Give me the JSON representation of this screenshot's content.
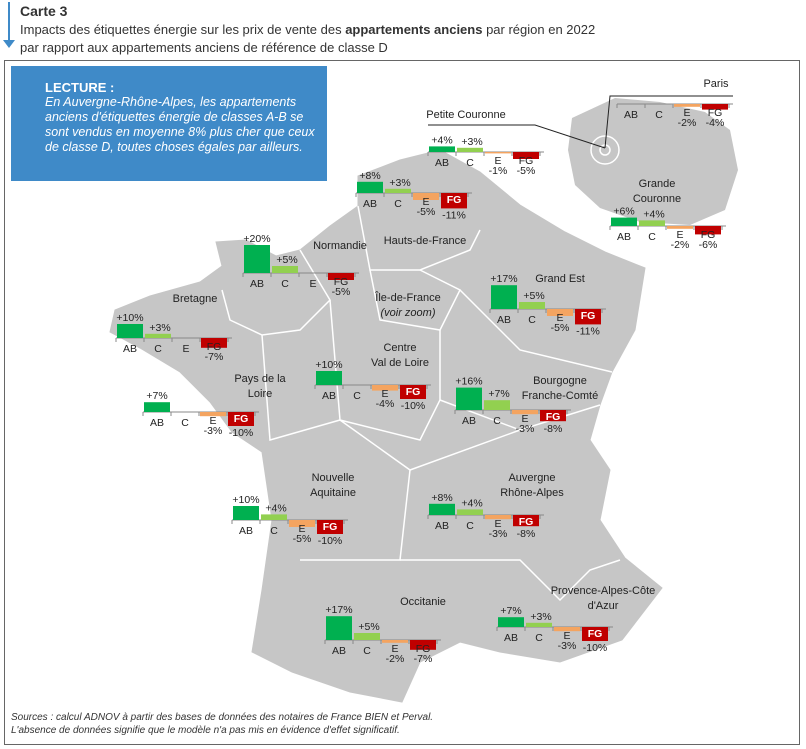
{
  "header": {
    "label": "Carte 3",
    "title_part1": "Impacts des étiquettes énergie sur les prix de vente des ",
    "title_bold": "appartements anciens",
    "title_part2": " par région en 2022",
    "title_line2": "par rapport aux appartements anciens de référence de classe D"
  },
  "lecture": {
    "heading": "LECTURE :",
    "text": "En Auvergne-Rhône-Alpes, les appartements anciens d'étiquettes énergie de classes A-B se sont vendus en moyenne 8% plus cher que ceux de classe D, toutes choses égales par ailleurs."
  },
  "footer": {
    "sources": "Sources : calcul ADNOV à partir des bases de données des notaires de France BIEN et Perval.",
    "note": "L'absence de données signifie que le modèle n'a pas mis en évidence d'effet significatif."
  },
  "chart_data": {
    "type": "bar",
    "unit": "%",
    "categories": [
      "AB",
      "C",
      "E",
      "FG"
    ],
    "colors": {
      "AB": "#00b050",
      "C": "#92d050",
      "E": "#f4a460",
      "FG": "#c00000"
    },
    "regions": [
      {
        "id": "paris",
        "name": [
          "Paris"
        ],
        "values": [
          null,
          null,
          -2,
          -4
        ]
      },
      {
        "id": "petite-couronne",
        "name": [
          "Petite Couronne"
        ],
        "values": [
          4,
          3,
          -1,
          -5
        ]
      },
      {
        "id": "grande-couronne",
        "name": [
          "Grande",
          "Couronne"
        ],
        "values": [
          6,
          4,
          -2,
          -6
        ]
      },
      {
        "id": "hauts-de-france",
        "name": [
          "Hauts-de-France"
        ],
        "values": [
          8,
          3,
          -5,
          -11
        ]
      },
      {
        "id": "normandie",
        "name": [
          "Normandie"
        ],
        "values": [
          20,
          5,
          null,
          -5
        ]
      },
      {
        "id": "bretagne",
        "name": [
          "Bretagne"
        ],
        "values": [
          10,
          3,
          null,
          -7
        ]
      },
      {
        "id": "ile-de-france",
        "name": [
          "Île-de-France"
        ],
        "note": "(voir zoom)",
        "values": []
      },
      {
        "id": "grand-est",
        "name": [
          "Grand Est"
        ],
        "values": [
          17,
          5,
          -5,
          -11
        ]
      },
      {
        "id": "centre-val-de-loire",
        "name": [
          "Centre",
          "Val de Loire"
        ],
        "values": [
          10,
          null,
          -4,
          -10
        ]
      },
      {
        "id": "pays-de-la-loire",
        "name": [
          "Pays de la",
          "Loire"
        ],
        "values": [
          7,
          null,
          -3,
          -10
        ]
      },
      {
        "id": "bourgogne-franche-comte",
        "name": [
          "Bourgogne",
          "Franche-Comté"
        ],
        "values": [
          16,
          7,
          -3,
          -8
        ]
      },
      {
        "id": "nouvelle-aquitaine",
        "name": [
          "Nouvelle",
          "Aquitaine"
        ],
        "values": [
          10,
          4,
          -5,
          -10
        ]
      },
      {
        "id": "auvergne-rhone-alpes",
        "name": [
          "Auvergne",
          "Rhône-Alpes"
        ],
        "values": [
          8,
          4,
          -3,
          -8
        ]
      },
      {
        "id": "occitanie",
        "name": [
          "Occitanie"
        ],
        "values": [
          17,
          5,
          -2,
          -7
        ]
      },
      {
        "id": "paca",
        "name": [
          "Provence-Alpes-Côte",
          "d'Azur"
        ],
        "values": [
          7,
          3,
          -3,
          -10
        ]
      }
    ]
  }
}
